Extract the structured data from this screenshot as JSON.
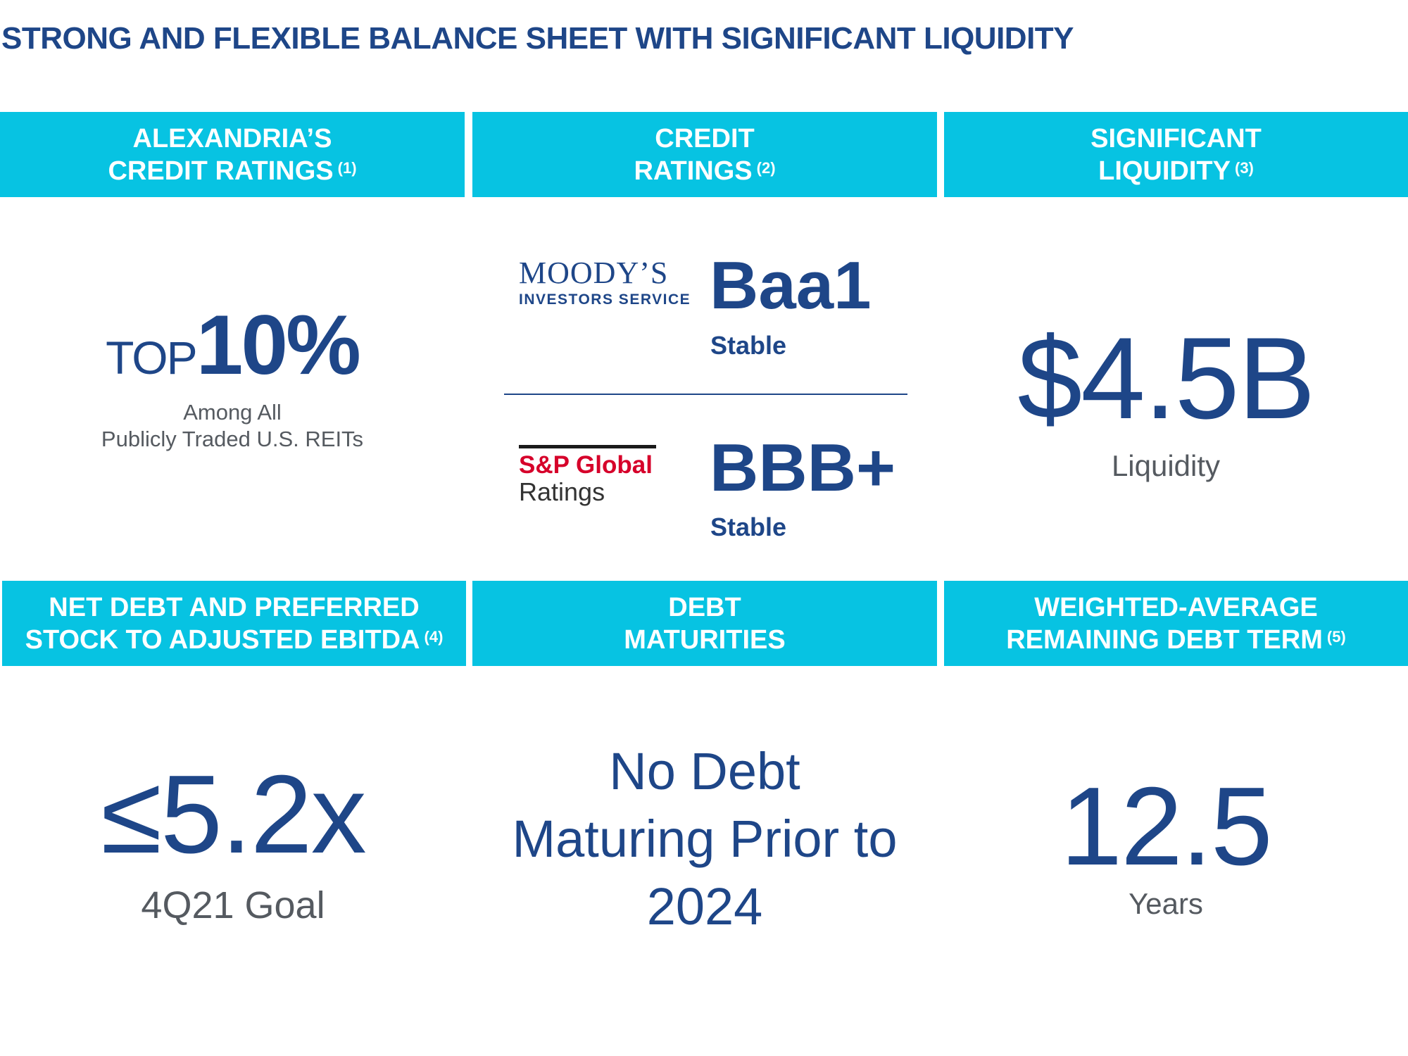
{
  "title": "STRONG AND FLEXIBLE BALANCE SHEET WITH SIGNIFICANT LIQUIDITY",
  "headers": {
    "alexandria": {
      "line1": "ALEXANDRIA’S",
      "line2": "CREDIT RATINGS",
      "note": "(1)"
    },
    "credit": {
      "line1": "CREDIT",
      "line2": "RATINGS",
      "note": "(2)"
    },
    "liquidity": {
      "line1": "SIGNIFICANT",
      "line2": "LIQUIDITY",
      "note": "(3)"
    },
    "net_debt": {
      "line1": "NET DEBT AND PREFERRED",
      "line2": "STOCK TO ADJUSTED EBITDA",
      "note": "(4)"
    },
    "maturities": {
      "line1": "DEBT",
      "line2": "MATURITIES"
    },
    "term": {
      "line1": "WEIGHTED-AVERAGE",
      "line2": "REMAINING DEBT TERM",
      "note": "(5)"
    }
  },
  "alexandria_rating": {
    "prefix": "TOP",
    "value": "10%",
    "caption_line1": "Among All",
    "caption_line2": "Publicly Traded U.S. REITs"
  },
  "moodys": {
    "logo_line1": "MOODY’S",
    "logo_line2": "INVESTORS SERVICE",
    "rating": "Baa1",
    "outlook": "Stable"
  },
  "sp": {
    "logo_line1": "S&P Global",
    "logo_line2": "Ratings",
    "rating": "BBB+",
    "outlook": "Stable"
  },
  "liquidity": {
    "value": "$4.5B",
    "caption": "Liquidity"
  },
  "net_debt": {
    "value": "≤5.2x",
    "caption": "4Q21 Goal"
  },
  "maturities": {
    "line1": "No Debt",
    "line2": "Maturing Prior to",
    "line3": "2024"
  },
  "term": {
    "value": "12.5",
    "caption": "Years"
  },
  "colors": {
    "accent": "#07c3e2",
    "navy": "#1e4688",
    "sp_red": "#d6002a"
  }
}
